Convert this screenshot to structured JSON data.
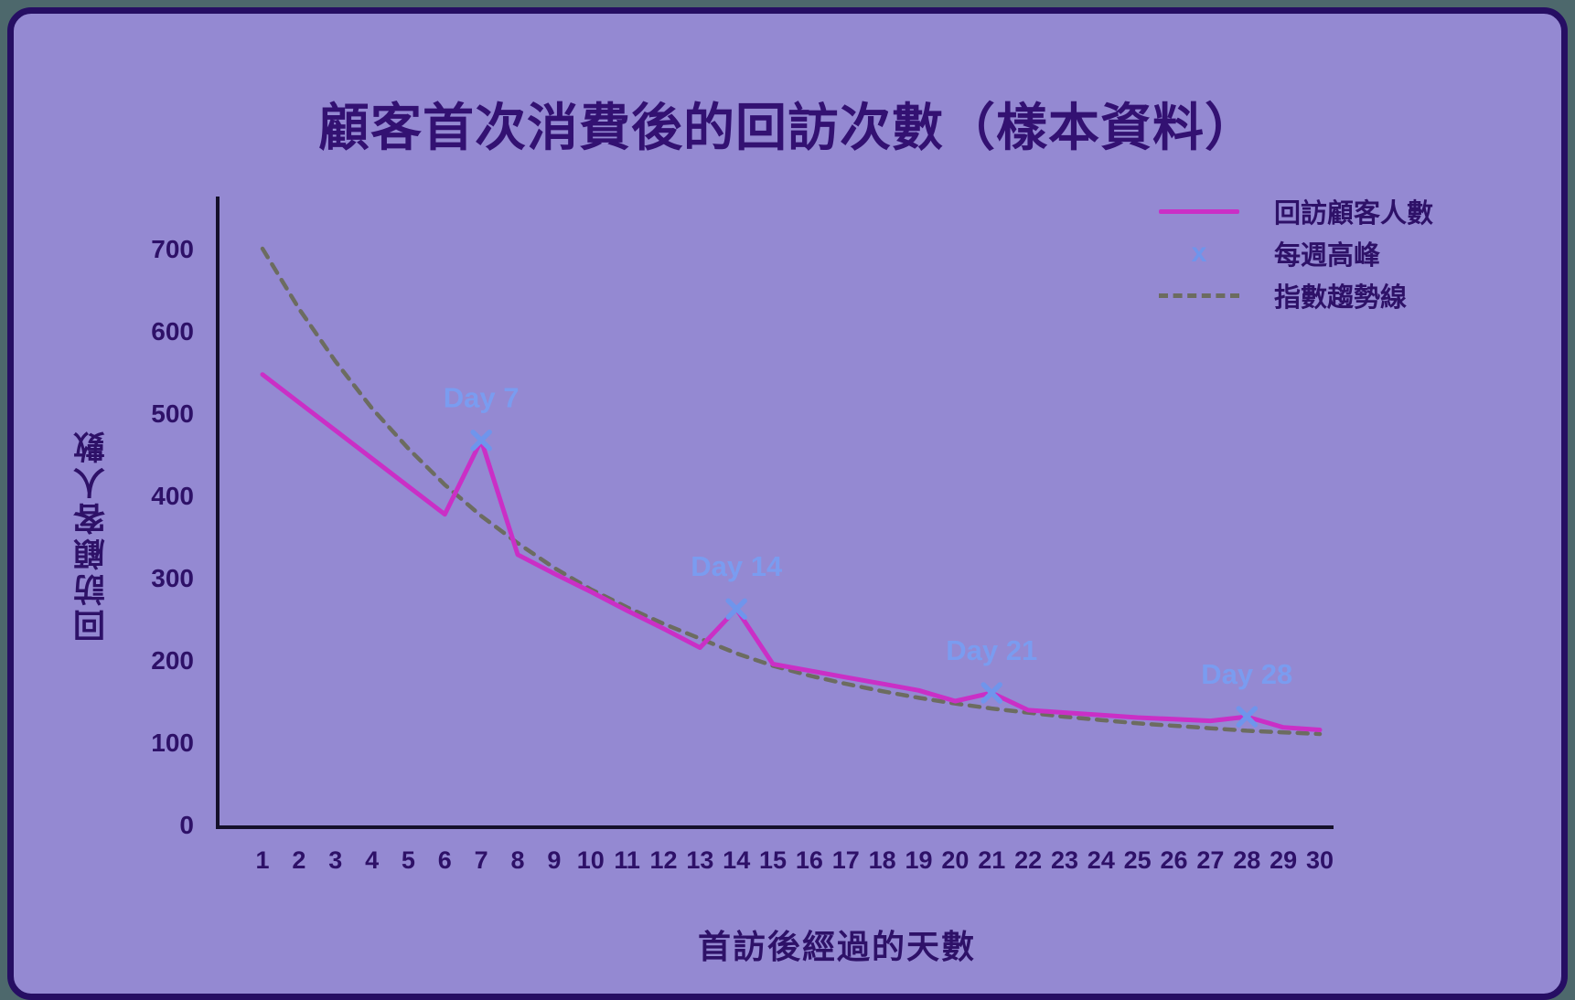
{
  "title": "顧客首次消費後的回訪次數（樣本資料）",
  "colors": {
    "page_background": "#4d686c",
    "card_background": "#9489d2",
    "card_border": "#260e63",
    "title_text": "#331172",
    "axis_text": "#2e1168",
    "axis_line": "#15102b",
    "line_series": "#ca2fc6",
    "peak_marker": "#6f95ec",
    "annotation_text": "#7a9cf0",
    "trend_line": "#6c6c60"
  },
  "legend": {
    "items": [
      {
        "label": "回訪顧客人數",
        "type": "line"
      },
      {
        "label": "每週高峰",
        "type": "x-marker",
        "glyph": "x"
      },
      {
        "label": "指數趨勢線",
        "type": "dashed"
      }
    ]
  },
  "chart_data": {
    "type": "line",
    "title": "顧客首次消費後的回訪次數（樣本資料）",
    "xlabel": "首訪後經過的天數",
    "ylabel": "回訪顧客人數",
    "x": [
      1,
      2,
      3,
      4,
      5,
      6,
      7,
      8,
      9,
      10,
      11,
      12,
      13,
      14,
      15,
      16,
      17,
      18,
      19,
      20,
      21,
      22,
      23,
      24,
      25,
      26,
      27,
      28,
      29,
      30
    ],
    "yticks": [
      0,
      100,
      200,
      300,
      400,
      500,
      600,
      700
    ],
    "ylim": [
      0,
      765
    ],
    "grid": false,
    "legend_position": "upper right",
    "series": [
      {
        "name": "回訪顧客人數",
        "style": "solid",
        "values": [
          547,
          513,
          479,
          445,
          411,
          377,
          467,
          328,
          305,
          283,
          260,
          238,
          215,
          262,
          195,
          187,
          179,
          171,
          163,
          150,
          160,
          139,
          136,
          133,
          130,
          128,
          126,
          131,
          118,
          115
        ]
      },
      {
        "name": "指數趨勢線",
        "style": "dashed",
        "values": [
          700,
          627,
          563,
          506,
          457,
          413,
          375,
          342,
          312,
          286,
          264,
          244,
          226,
          208,
          193,
          181,
          171,
          162,
          154,
          147,
          141,
          136,
          131,
          127,
          123,
          120,
          117,
          114,
          112,
          110
        ]
      }
    ],
    "peaks": {
      "name": "每週高峰",
      "marker": "x",
      "days": [
        7,
        14,
        21,
        28
      ],
      "values": [
        467,
        262,
        160,
        131
      ]
    },
    "annotations": [
      {
        "day": 7,
        "value": 467,
        "label": "Day 7"
      },
      {
        "day": 14,
        "value": 262,
        "label": "Day 14"
      },
      {
        "day": 21,
        "value": 160,
        "label": "Day 21"
      },
      {
        "day": 28,
        "value": 131,
        "label": "Day 28"
      }
    ]
  }
}
